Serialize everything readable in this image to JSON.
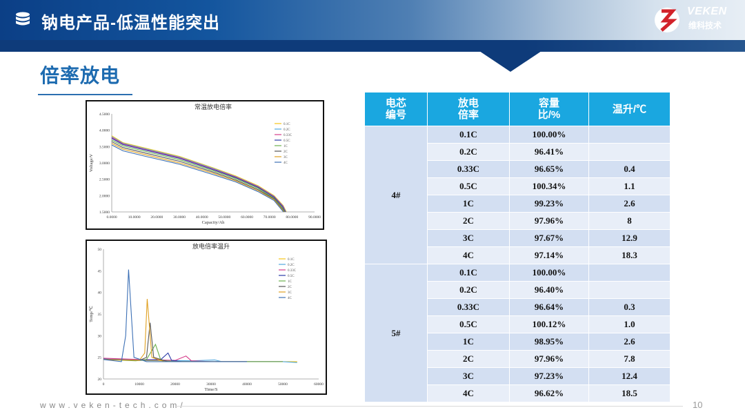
{
  "header": {
    "title": "钠电产品-低温性能突出",
    "logo_text": "VEKEN",
    "logo_sub": "维科技术"
  },
  "section": {
    "title": "倍率放电"
  },
  "footer": {
    "url": "www.veken-tech.com/",
    "page": "10"
  },
  "colors": {
    "header_blue": "#0b3f86",
    "table_header": "#1aa7e0",
    "title_blue": "#1d6bb0"
  },
  "charts": [
    {
      "type": "line",
      "title": "常温放电倍率",
      "xlabel": "Capacity/Ah",
      "ylabel": "Voltage/V",
      "xlim": [
        0,
        90
      ],
      "ylim": [
        1.5,
        4.5
      ],
      "x_ticks": [
        "0.0000",
        "10.0000",
        "20.0000",
        "30.0000",
        "40.0000",
        "50.0000",
        "60.0000",
        "70.0000",
        "80.0000",
        "90.0000"
      ],
      "y_ticks": [
        "1.5000",
        "2.0000",
        "2.5000",
        "3.0000",
        "3.5000",
        "4.0000",
        "4.5000"
      ],
      "legend": [
        "0.1C",
        "0.2C",
        "0.33C",
        "0.5C",
        "1C",
        "2C",
        "3C",
        "4C"
      ],
      "legend_position": "top-right",
      "series_colors": [
        "#f5c518",
        "#4fa8e0",
        "#d63c8a",
        "#2a3aa8",
        "#6ab04c",
        "#555555",
        "#e0a020",
        "#3b6fb5"
      ],
      "series": [
        {
          "name": "0.1C",
          "x": [
            0,
            5,
            15,
            30,
            45,
            55,
            65,
            72,
            76,
            77.5
          ],
          "y": [
            3.83,
            3.62,
            3.45,
            3.2,
            2.85,
            2.6,
            2.3,
            2.0,
            1.7,
            1.5
          ]
        },
        {
          "name": "0.2C",
          "x": [
            0,
            5,
            15,
            30,
            45,
            55,
            65,
            72,
            76,
            77.3
          ],
          "y": [
            3.8,
            3.6,
            3.43,
            3.18,
            2.83,
            2.58,
            2.28,
            1.98,
            1.68,
            1.5
          ]
        },
        {
          "name": "0.33C",
          "x": [
            0,
            5,
            15,
            30,
            45,
            55,
            65,
            72,
            76,
            77.1
          ],
          "y": [
            3.78,
            3.58,
            3.41,
            3.16,
            2.81,
            2.57,
            2.27,
            1.97,
            1.67,
            1.5
          ]
        },
        {
          "name": "0.5C",
          "x": [
            0,
            5,
            15,
            30,
            45,
            55,
            65,
            72,
            75.8,
            77
          ],
          "y": [
            3.75,
            3.56,
            3.39,
            3.14,
            2.79,
            2.55,
            2.25,
            1.95,
            1.66,
            1.5
          ]
        },
        {
          "name": "1C",
          "x": [
            0,
            5,
            15,
            30,
            45,
            55,
            65,
            72,
            75.6,
            76.8
          ],
          "y": [
            3.7,
            3.52,
            3.35,
            3.1,
            2.76,
            2.52,
            2.22,
            1.92,
            1.64,
            1.5
          ]
        },
        {
          "name": "2C",
          "x": [
            0,
            5,
            15,
            30,
            45,
            55,
            65,
            72,
            75.4,
            76.6
          ],
          "y": [
            3.65,
            3.47,
            3.3,
            3.05,
            2.72,
            2.48,
            2.18,
            1.9,
            1.62,
            1.5
          ]
        },
        {
          "name": "3C",
          "x": [
            0,
            5,
            15,
            30,
            45,
            55,
            65,
            72,
            75.2,
            76.4
          ],
          "y": [
            3.6,
            3.42,
            3.25,
            3.0,
            2.68,
            2.45,
            2.15,
            1.88,
            1.61,
            1.5
          ]
        },
        {
          "name": "4C",
          "x": [
            0,
            5,
            15,
            30,
            45,
            55,
            65,
            72,
            75,
            76.2
          ],
          "y": [
            3.55,
            3.37,
            3.2,
            2.96,
            2.64,
            2.42,
            2.12,
            1.85,
            1.6,
            1.5
          ]
        }
      ]
    },
    {
      "type": "line",
      "title": "放电倍率温升",
      "xlabel": "Time/S",
      "ylabel": "Temp/℃",
      "xlim": [
        0,
        60000
      ],
      "ylim": [
        20,
        50
      ],
      "x_ticks": [
        "0",
        "10000",
        "20000",
        "30000",
        "40000",
        "50000",
        "60000"
      ],
      "y_ticks": [
        "20",
        "25",
        "30",
        "35",
        "40",
        "45",
        "50"
      ],
      "legend": [
        "0.1C",
        "0.2C",
        "0.33C",
        "0.5C",
        "1C",
        "2C",
        "3C",
        "4C"
      ],
      "legend_position": "top-right",
      "series_colors": [
        "#f5c518",
        "#4fa8e0",
        "#d63c8a",
        "#2a3aa8",
        "#6ab04c",
        "#555555",
        "#e0a020",
        "#3b6fb5"
      ],
      "series": [
        {
          "name": "0.1C",
          "x": [
            0,
            10000,
            30000,
            50000,
            54000
          ],
          "y": [
            24.5,
            24.3,
            24.0,
            24.0,
            24.0
          ]
        },
        {
          "name": "0.2C",
          "x": [
            0,
            10000,
            25000,
            31000,
            33000,
            50000,
            54000
          ],
          "y": [
            24.6,
            24.4,
            24.2,
            24.4,
            24.0,
            24.0,
            23.8
          ]
        },
        {
          "name": "0.33C",
          "x": [
            0,
            10000,
            20000,
            23000,
            24500,
            30000,
            50000
          ],
          "y": [
            24.8,
            24.5,
            24.3,
            25.3,
            24.2,
            24.0,
            24.0
          ]
        },
        {
          "name": "0.5C",
          "x": [
            0,
            10000,
            16000,
            18000,
            19000,
            22000,
            50000
          ],
          "y": [
            24.6,
            24.3,
            24.5,
            26.0,
            24.3,
            24.0,
            24.0
          ]
        },
        {
          "name": "1C",
          "x": [
            0,
            9000,
            12000,
            14500,
            16000,
            20000,
            50000
          ],
          "y": [
            24.5,
            24.2,
            24.5,
            28.0,
            24.3,
            24.0,
            24.0
          ]
        },
        {
          "name": "2C",
          "x": [
            0,
            10000,
            12000,
            13000,
            14000,
            18000,
            40000
          ],
          "y": [
            24.5,
            24.3,
            25.0,
            33.0,
            25.0,
            24.0,
            24.0
          ]
        },
        {
          "name": "3C",
          "x": [
            0,
            10000,
            11500,
            12200,
            13500,
            17000,
            40000
          ],
          "y": [
            24.5,
            24.3,
            26.0,
            38.5,
            25.0,
            24.0,
            24.0
          ]
        },
        {
          "name": "4C",
          "x": [
            0,
            5000,
            6200,
            7000,
            8500,
            12000,
            40000
          ],
          "y": [
            24.5,
            24.0,
            30.0,
            45.3,
            25.0,
            24.0,
            24.0
          ]
        }
      ]
    }
  ],
  "table": {
    "headers": [
      {
        "line1": "电芯",
        "line2": "编号"
      },
      {
        "line1": "放电",
        "line2": "倍率"
      },
      {
        "line1": "容量",
        "line2": "比/%"
      },
      {
        "line1": "温升/℃",
        "line2": ""
      }
    ],
    "groups": [
      {
        "cell": "4#",
        "rows": [
          {
            "rate": "0.1C",
            "capacity": "100.00%",
            "temp": ""
          },
          {
            "rate": "0.2C",
            "capacity": "96.41%",
            "temp": ""
          },
          {
            "rate": "0.33C",
            "capacity": "96.65%",
            "temp": "0.4"
          },
          {
            "rate": "0.5C",
            "capacity": "100.34%",
            "temp": "1.1"
          },
          {
            "rate": "1C",
            "capacity": "99.23%",
            "temp": "2.6"
          },
          {
            "rate": "2C",
            "capacity": "97.96%",
            "temp": "8"
          },
          {
            "rate": "3C",
            "capacity": "97.67%",
            "temp": "12.9"
          },
          {
            "rate": "4C",
            "capacity": "97.14%",
            "temp": "18.3"
          }
        ]
      },
      {
        "cell": "5#",
        "rows": [
          {
            "rate": "0.1C",
            "capacity": "100.00%",
            "temp": ""
          },
          {
            "rate": "0.2C",
            "capacity": "96.40%",
            "temp": ""
          },
          {
            "rate": "0.33C",
            "capacity": "96.64%",
            "temp": "0.3"
          },
          {
            "rate": "0.5C",
            "capacity": "100.12%",
            "temp": "1.0"
          },
          {
            "rate": "1C",
            "capacity": "98.95%",
            "temp": "2.6"
          },
          {
            "rate": "2C",
            "capacity": "97.96%",
            "temp": "7.8"
          },
          {
            "rate": "3C",
            "capacity": "97.23%",
            "temp": "12.4"
          },
          {
            "rate": "4C",
            "capacity": "96.62%",
            "temp": "18.5"
          }
        ]
      }
    ]
  }
}
